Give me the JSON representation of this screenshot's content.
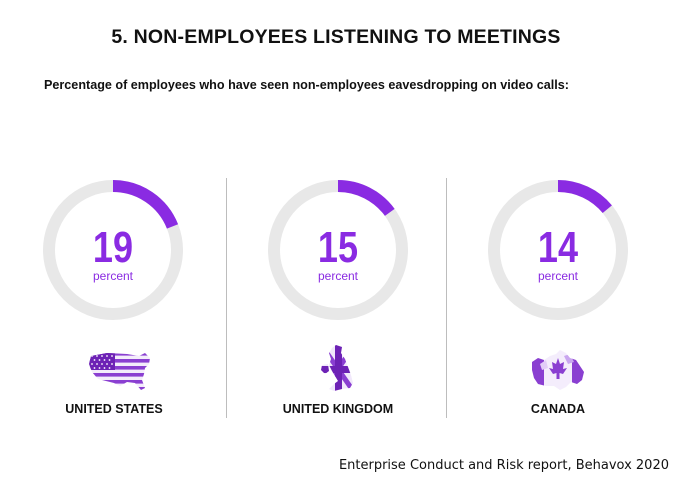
{
  "title": "5. NON-EMPLOYEES LISTENING TO MEETINGS",
  "subtitle": "Percentage of employees who have seen non-employees eavesdropping on video calls:",
  "colors": {
    "accent": "#8a2be2",
    "track": "#e8e8e8",
    "divider": "#bdbdbd",
    "text": "#111111"
  },
  "chart_data": {
    "type": "donut",
    "max": 100,
    "unit_label": "percent",
    "categories": [
      "UNITED STATES",
      "UNITED KINGDOM",
      "CANADA"
    ],
    "values": [
      19,
      15,
      14
    ],
    "icons": [
      "us-flag-map-icon",
      "uk-flag-map-icon",
      "canada-flag-map-icon"
    ]
  },
  "source": "Enterprise Conduct and Risk report, Behavox 2020"
}
